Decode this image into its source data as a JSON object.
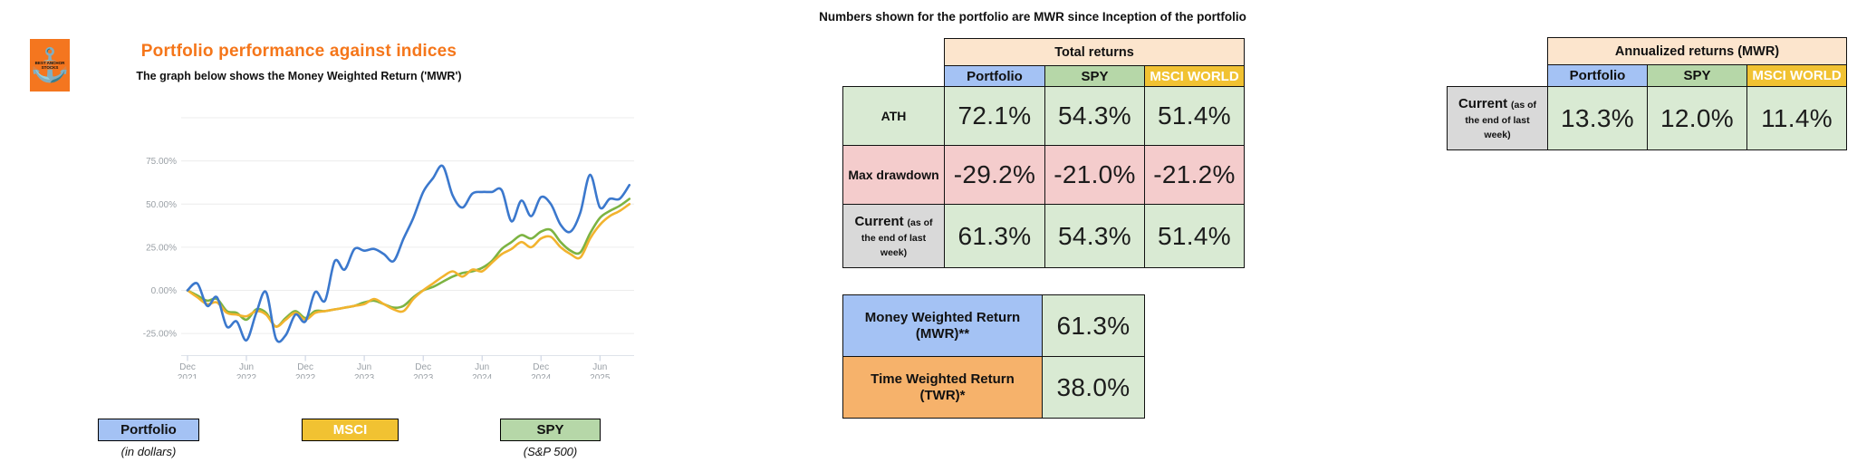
{
  "logo": {
    "anchor_icon": "anchor",
    "brand_text": "BEST ANCHOR STOCKS",
    "bg_color": "#f4761f"
  },
  "top_note": "Numbers shown for the portfolio are MWR since Inception of the portfolio",
  "chart": {
    "title": "Portfolio performance against indices",
    "subtitle": "The graph below shows the Money Weighted Return ('MWR')",
    "title_color": "#f5761a"
  },
  "chart_data": {
    "type": "line",
    "title": "Portfolio performance against indices",
    "x_unit": "month",
    "x_start": "Dec 2021",
    "x_tick_labels": [
      [
        "Dec",
        "2021"
      ],
      [
        "Jun",
        "2022"
      ],
      [
        "Dec",
        "2022"
      ],
      [
        "Jun",
        "2023"
      ],
      [
        "Dec",
        "2023"
      ],
      [
        "Jun",
        "2024"
      ],
      [
        "Dec",
        "2024"
      ],
      [
        "Jun",
        "2025"
      ]
    ],
    "x_tick_month_index": [
      0,
      6,
      12,
      18,
      24,
      30,
      36,
      42
    ],
    "y_tick_labels": [
      "75.00%",
      "50.00%",
      "25.00%",
      "0.00%",
      "-25.00%"
    ],
    "y_tick_values": [
      75,
      50,
      25,
      0,
      -25
    ],
    "ylim": [
      -37.7,
      100
    ],
    "grid": true,
    "series": [
      {
        "name": "SPY",
        "color": "#7cb342",
        "values": [
          0,
          -3,
          -6,
          -5,
          -12,
          -13,
          -17,
          -11,
          -13,
          -21,
          -16,
          -12,
          -16,
          -12,
          -12,
          -11,
          -10,
          -9,
          -7,
          -6,
          -8,
          -10,
          -9,
          -4,
          0,
          2,
          5,
          8,
          10,
          11,
          13,
          17,
          24,
          28,
          32,
          30,
          34,
          35,
          28,
          23,
          22,
          33,
          42,
          46,
          49,
          53
        ]
      },
      {
        "name": "MSCI",
        "color": "#f2b32e",
        "values": [
          0,
          -4,
          -8,
          -7,
          -13,
          -14,
          -15,
          -12,
          -14,
          -21,
          -17,
          -13,
          -17,
          -13,
          -12,
          -11,
          -10,
          -9,
          -8,
          -5,
          -8,
          -11,
          -12,
          -5,
          0,
          4,
          8,
          11,
          8,
          12,
          11,
          16,
          21,
          24,
          28,
          25,
          30,
          31,
          25,
          21,
          19,
          30,
          38,
          43,
          46,
          50
        ]
      },
      {
        "name": "Portfolio",
        "color": "#3b78cd",
        "values": [
          0,
          4,
          -9,
          -4,
          -21,
          -18,
          -29,
          -13,
          -1,
          -28,
          -26,
          -14,
          -18,
          -1,
          -6,
          17,
          12,
          24,
          23,
          24,
          21,
          17,
          30,
          42,
          57,
          65,
          72,
          55,
          48,
          56,
          57,
          57,
          58,
          40,
          52,
          43,
          54,
          50,
          38,
          34,
          45,
          67,
          48,
          53,
          53,
          61
        ]
      }
    ]
  },
  "legend": {
    "portfolio": {
      "label": "Portfolio",
      "caption": "(in dollars)",
      "bg": "#a4c2f4"
    },
    "msci": {
      "label": "MSCI",
      "bg": "#f1c232"
    },
    "spy": {
      "label": "SPY",
      "caption": "(S&P 500)",
      "bg": "#b6d7a8"
    }
  },
  "tables": {
    "total": {
      "title": "Total returns",
      "columns": [
        "Portfolio",
        "SPY",
        "MSCI WORLD"
      ],
      "rows": [
        {
          "label": "ATH",
          "values": [
            "72.1%",
            "54.3%",
            "51.4%"
          ]
        },
        {
          "label": "Max drawdown",
          "values": [
            "-29.2%",
            "-21.0%",
            "-21.2%"
          ]
        },
        {
          "label": "Current",
          "label_suffix": "(as of the end of last week)",
          "values": [
            "61.3%",
            "54.3%",
            "51.4%"
          ]
        }
      ]
    },
    "wr": {
      "rows": [
        {
          "label": "Money Weighted Return (MWR)**",
          "value": "61.3%"
        },
        {
          "label": "Time Weighted Return (TWR)*",
          "value": "38.0%"
        }
      ]
    },
    "annualized": {
      "title": "Annualized returns (MWR)",
      "columns": [
        "Portfolio",
        "SPY",
        "MSCI WORLD"
      ],
      "rows": [
        {
          "label": "Current",
          "label_suffix": "(as of the end of last week)",
          "values": [
            "13.3%",
            "12.0%",
            "11.4%"
          ]
        }
      ]
    }
  },
  "colors": {
    "peach_header": "#fce5cd",
    "blue_cell": "#a4c2f4",
    "green_header": "#b6d7a8",
    "gold_cell": "#f1c232",
    "green_value_cell": "#d9ead3",
    "pink_cell": "#f4cccc",
    "gray_cell": "#d9d9d9",
    "orange_cell": "#f6b26b"
  }
}
